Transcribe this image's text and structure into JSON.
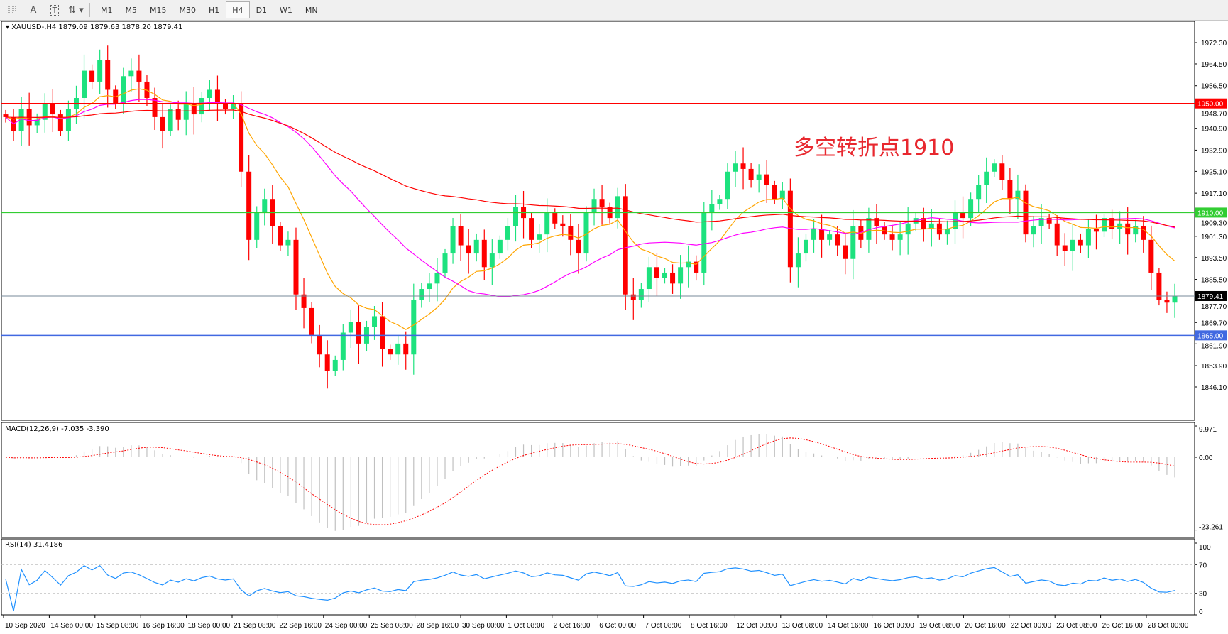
{
  "toolbar": {
    "icons": [
      "fibonacci-icon",
      "text-label-icon",
      "text-box-icon",
      "arrows-icon"
    ],
    "labels": {
      "text": "A",
      "textbox": "T"
    },
    "timeframes": [
      "M1",
      "M5",
      "M15",
      "M30",
      "H1",
      "H4",
      "D1",
      "W1",
      "MN"
    ],
    "active_timeframe": "H4"
  },
  "chart": {
    "symbol_info": "XAUUSD-,H4  1879.09 1879.63 1878.20 1879.41",
    "annotation": "多空转折点1910",
    "price_ticks": [
      "1972.30",
      "1964.50",
      "1956.50",
      "1948.70",
      "1940.90",
      "1932.90",
      "1925.10",
      "1917.10",
      "1909.30",
      "1901.30",
      "1893.50",
      "1885.50",
      "1877.70",
      "1869.70",
      "1861.90",
      "1853.90",
      "1846.10"
    ],
    "price_range": [
      1846.1,
      1972.3
    ],
    "hlines": [
      {
        "price": 1950.0,
        "label": "1950.00",
        "color": "#ff0000"
      },
      {
        "price": 1910.0,
        "label": "1910.00",
        "color": "#32cd32"
      },
      {
        "price": 1865.0,
        "label": "1865.00",
        "color": "#4169e1"
      },
      {
        "price": 1879.41,
        "label": "1879.41",
        "color": "#778899",
        "label_bg": "#000000"
      }
    ],
    "colors": {
      "bull": "#1de27e",
      "bear": "#ff0000",
      "ma_fast": "#ffa500",
      "ma_mid": "#ff00ff",
      "ma_slow": "#ff0000"
    },
    "closes": [
      1945,
      1940,
      1948,
      1942,
      1944,
      1950,
      1946,
      1940,
      1948,
      1952,
      1962,
      1958,
      1966,
      1955,
      1950,
      1960,
      1962,
      1958,
      1952,
      1945,
      1940,
      1948,
      1944,
      1950,
      1946,
      1952,
      1955,
      1950,
      1948,
      1950,
      1925,
      1900,
      1910,
      1915,
      1905,
      1898,
      1900,
      1880,
      1875,
      1865,
      1858,
      1852,
      1856,
      1866,
      1870,
      1862,
      1868,
      1872,
      1860,
      1858,
      1862,
      1858,
      1878,
      1882,
      1884,
      1888,
      1895,
      1905,
      1898,
      1895,
      1900,
      1890,
      1895,
      1900,
      1905,
      1912,
      1908,
      1900,
      1902,
      1910,
      1906,
      1905,
      1900,
      1895,
      1910,
      1915,
      1912,
      1908,
      1916,
      1880,
      1878,
      1882,
      1890,
      1886,
      1888,
      1884,
      1890,
      1892,
      1888,
      1910,
      1913,
      1915,
      1925,
      1928,
      1926,
      1922,
      1924,
      1920,
      1915,
      1918,
      1890,
      1895,
      1900,
      1904,
      1900,
      1902,
      1898,
      1893,
      1905,
      1900,
      1908,
      1905,
      1902,
      1900,
      1902,
      1906,
      1908,
      1904,
      1906,
      1902,
      1904,
      1910,
      1908,
      1915,
      1920,
      1925,
      1928,
      1922,
      1915,
      1918,
      1902,
      1905,
      1908,
      1906,
      1898,
      1896,
      1900,
      1898,
      1904,
      1903,
      1908,
      1904,
      1906,
      1902,
      1905,
      1900,
      1888,
      1878,
      1877,
      1879.41
    ],
    "time_labels": [
      "10 Sep 2020",
      "14 Sep 00:00",
      "15 Sep 08:00",
      "16 Sep 16:00",
      "18 Sep 00:00",
      "21 Sep 08:00",
      "22 Sep 16:00",
      "24 Sep 00:00",
      "25 Sep 08:00",
      "28 Sep 16:00",
      "30 Sep 00:00",
      "1 Oct 08:00",
      "2 Oct 16:00",
      "6 Oct 00:00",
      "7 Oct 08:00",
      "8 Oct 16:00",
      "12 Oct 00:00",
      "13 Oct 08:00",
      "14 Oct 16:00",
      "16 Oct 00:00",
      "19 Oct 08:00",
      "20 Oct 16:00",
      "22 Oct 00:00",
      "23 Oct 08:00",
      "26 Oct 16:00",
      "28 Oct 00:00"
    ]
  },
  "macd": {
    "label": "MACD(12,26,9) -7.035 -3.390",
    "ticks": [
      "9.971",
      "0.00",
      "-23.261"
    ],
    "range": [
      -23.261,
      9.971
    ],
    "colors": {
      "histogram": "#c0c0c0",
      "signal": "#ff0000"
    }
  },
  "rsi": {
    "label": "RSI(14) 31.4186",
    "ticks": [
      "100",
      "70",
      "30",
      "0"
    ],
    "levels": [
      70,
      30
    ],
    "color": "#1e90ff"
  }
}
